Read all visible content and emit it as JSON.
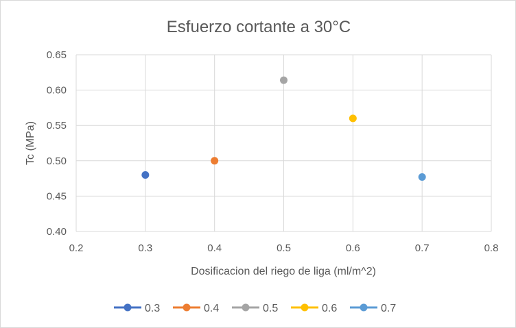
{
  "chart_data": {
    "type": "scatter",
    "title": "Esfuerzo cortante a 30°C",
    "xlabel": "Dosificacion del riego de liga  (ml/m^2)",
    "ylabel": "Tc (MPa)",
    "xlim": [
      0.2,
      0.8
    ],
    "ylim": [
      0.4,
      0.65
    ],
    "x_ticks": [
      "0.2",
      "0.3",
      "0.4",
      "0.5",
      "0.6",
      "0.7",
      "0.8"
    ],
    "y_ticks": [
      "0.40",
      "0.45",
      "0.50",
      "0.55",
      "0.60",
      "0.65"
    ],
    "grid": true,
    "legend_position": "bottom",
    "series": [
      {
        "name": "0.3",
        "color": "#4472c4",
        "points": [
          {
            "x": 0.3,
            "y": 0.48
          }
        ]
      },
      {
        "name": "0.4",
        "color": "#ed7d31",
        "points": [
          {
            "x": 0.4,
            "y": 0.5
          }
        ]
      },
      {
        "name": "0.5",
        "color": "#a5a5a5",
        "points": [
          {
            "x": 0.5,
            "y": 0.614
          }
        ]
      },
      {
        "name": "0.6",
        "color": "#ffc000",
        "points": [
          {
            "x": 0.6,
            "y": 0.56
          }
        ]
      },
      {
        "name": "0.7",
        "color": "#5b9bd5",
        "points": [
          {
            "x": 0.7,
            "y": 0.477
          }
        ]
      }
    ]
  }
}
